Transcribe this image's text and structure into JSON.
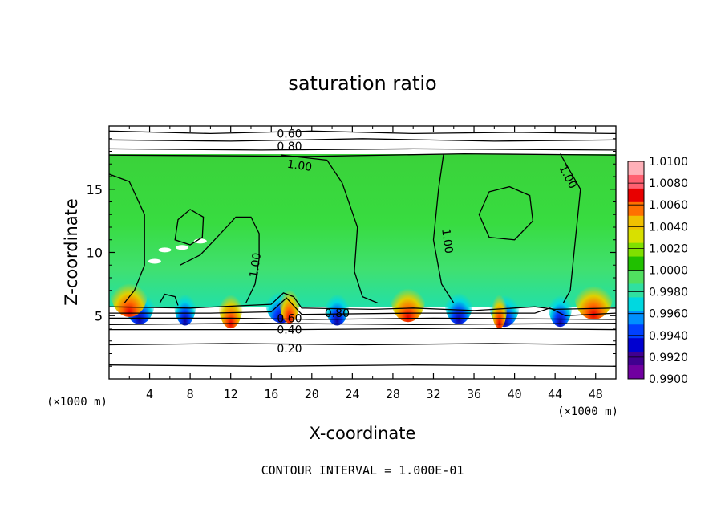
{
  "chart_data": {
    "type": "heatmap",
    "title": "saturation ratio",
    "xlabel": "X-coordinate",
    "ylabel": "Z-coordinate",
    "x_unit": "(×1000 m)",
    "z_unit": "(×1000 m)",
    "footer": "CONTOUR INTERVAL = 1.000E-01",
    "xlim": [
      0,
      50
    ],
    "ylim": [
      0,
      20
    ],
    "x_ticks": [
      "4",
      "8",
      "12",
      "16",
      "20",
      "24",
      "28",
      "32",
      "36",
      "40",
      "44",
      "48"
    ],
    "y_ticks": [
      "5",
      "10",
      "15"
    ],
    "colorbar": {
      "labels": [
        "1.0100",
        "1.0080",
        "1.0060",
        "1.0040",
        "1.0020",
        "1.0000",
        "0.9980",
        "0.9960",
        "0.9940",
        "0.9920",
        "0.9900"
      ],
      "colors": [
        "#ffb0b8",
        "#ff6070",
        "#e80000",
        "#ff7000",
        "#f0c000",
        "#d8e000",
        "#80e000",
        "#20c000",
        "#50e060",
        "#30e0a0",
        "#00d8e0",
        "#0090ff",
        "#0040ff",
        "#0000d0",
        "#400090",
        "#7000a0"
      ]
    },
    "contour_labels": [
      "0.60",
      "0.80",
      "1.00",
      "1.00",
      "1.00",
      "1.00",
      "0.80",
      "0.60",
      "0.40",
      "0.20"
    ],
    "field_bounds_z": [
      5.7,
      17.6
    ],
    "field_value_typical": 1.0
  }
}
